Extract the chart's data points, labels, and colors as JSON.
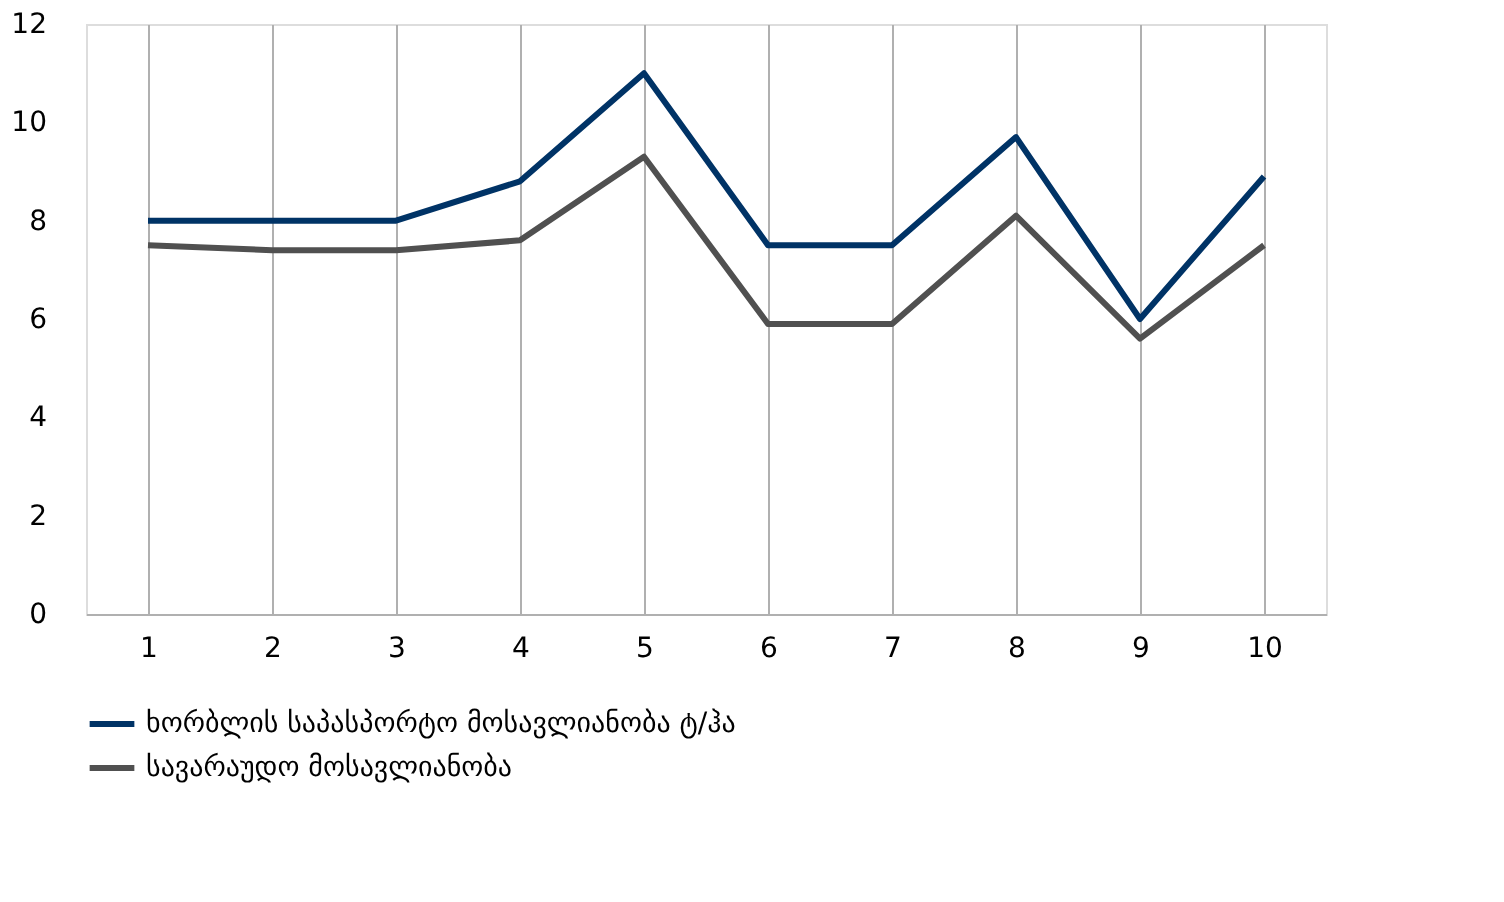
{
  "chart_data": {
    "type": "line",
    "categories": [
      "1",
      "2",
      "3",
      "4",
      "5",
      "6",
      "7",
      "8",
      "9",
      "10"
    ],
    "series": [
      {
        "name": "ხორბლის საპასპორტო მოსავლიანობა ტ/ჰა",
        "color": "#003366",
        "values": [
          8.0,
          8.0,
          8.0,
          8.8,
          11.0,
          7.5,
          7.5,
          9.7,
          6.0,
          8.9
        ]
      },
      {
        "name": "სავარაუდო მოსავლიანობა",
        "color": "#505050",
        "values": [
          7.5,
          7.4,
          7.4,
          7.6,
          9.3,
          5.9,
          5.9,
          8.1,
          5.6,
          7.5
        ]
      }
    ],
    "ylim": [
      0,
      12
    ],
    "yticks": [
      0,
      2,
      4,
      6,
      8,
      10,
      12
    ],
    "grid": "x",
    "legend": "bottom",
    "marker": "none",
    "line_style": "solid"
  }
}
